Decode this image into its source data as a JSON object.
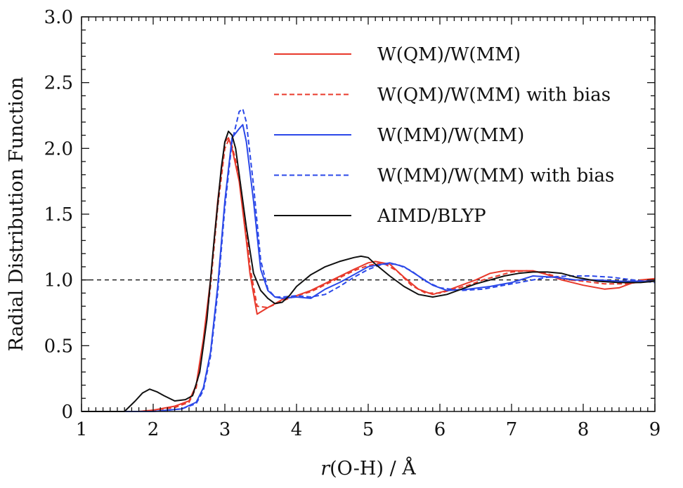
{
  "chart_data": {
    "type": "line",
    "xlabel_italic": "r",
    "xlabel_rest": "(O-H) / Å",
    "ylabel": "Radial Distribution Function",
    "xlim": [
      1,
      9
    ],
    "ylim": [
      0,
      3.0
    ],
    "x_ticks": [
      {
        "value": 1,
        "label": "1"
      },
      {
        "value": 2,
        "label": "2"
      },
      {
        "value": 3,
        "label": "3"
      },
      {
        "value": 4,
        "label": "4"
      },
      {
        "value": 5,
        "label": "5"
      },
      {
        "value": 6,
        "label": "6"
      },
      {
        "value": 7,
        "label": "7"
      },
      {
        "value": 8,
        "label": "8"
      },
      {
        "value": 9,
        "label": "9"
      }
    ],
    "y_ticks": [
      {
        "value": 0,
        "label": "0"
      },
      {
        "value": 0.5,
        "label": "0.5"
      },
      {
        "value": 1.0,
        "label": "1.0"
      },
      {
        "value": 1.5,
        "label": "1.5"
      },
      {
        "value": 2.0,
        "label": "2.0"
      },
      {
        "value": 2.5,
        "label": "2.5"
      },
      {
        "value": 3.0,
        "label": "3.0"
      }
    ],
    "reference_line": {
      "y": 1.0,
      "color": "#222222",
      "dash": "dashed"
    },
    "legend_position": "top-right",
    "series": [
      {
        "name": "W(QM)/W(MM)",
        "color": "#e8392b",
        "dash": "solid",
        "x": [
          1.0,
          1.8,
          2.0,
          2.3,
          2.5,
          2.6,
          2.7,
          2.8,
          2.9,
          3.0,
          3.05,
          3.1,
          3.2,
          3.3,
          3.35,
          3.45,
          3.6,
          3.8,
          4.0,
          4.2,
          4.5,
          4.8,
          5.0,
          5.1,
          5.3,
          5.5,
          5.7,
          5.9,
          6.1,
          6.3,
          6.5,
          6.7,
          6.9,
          7.1,
          7.3,
          7.5,
          7.7,
          8.0,
          8.3,
          8.5,
          8.8,
          9.0
        ],
        "y": [
          0.0,
          0.0,
          0.01,
          0.04,
          0.08,
          0.2,
          0.55,
          1.0,
          1.6,
          2.05,
          2.08,
          2.0,
          1.75,
          1.3,
          1.05,
          0.74,
          0.79,
          0.85,
          0.88,
          0.92,
          1.0,
          1.08,
          1.13,
          1.14,
          1.12,
          1.02,
          0.93,
          0.89,
          0.92,
          0.96,
          1.0,
          1.05,
          1.07,
          1.07,
          1.07,
          1.04,
          1.0,
          0.96,
          0.93,
          0.94,
          1.0,
          1.01
        ]
      },
      {
        "name": "W(QM)/W(MM) with bias",
        "color": "#e8392b",
        "dash": "dashed",
        "x": [
          1.0,
          1.8,
          2.0,
          2.3,
          2.5,
          2.6,
          2.7,
          2.8,
          2.9,
          3.0,
          3.05,
          3.1,
          3.2,
          3.3,
          3.35,
          3.45,
          3.6,
          3.8,
          4.0,
          4.2,
          4.5,
          4.8,
          5.0,
          5.2,
          5.4,
          5.6,
          5.8,
          6.0,
          6.2,
          6.4,
          6.6,
          6.8,
          7.0,
          7.2,
          7.4,
          7.6,
          7.8,
          8.0,
          8.3,
          8.6,
          9.0
        ],
        "y": [
          0.0,
          0.0,
          0.01,
          0.03,
          0.07,
          0.18,
          0.5,
          0.95,
          1.55,
          2.0,
          2.06,
          2.02,
          1.8,
          1.38,
          1.1,
          0.8,
          0.79,
          0.84,
          0.88,
          0.91,
          0.99,
          1.07,
          1.11,
          1.13,
          1.07,
          0.96,
          0.9,
          0.9,
          0.93,
          0.96,
          1.0,
          1.03,
          1.06,
          1.07,
          1.06,
          1.03,
          1.0,
          0.99,
          0.97,
          0.97,
          1.0
        ]
      },
      {
        "name": "W(MM)/W(MM)",
        "color": "#2b48e8",
        "dash": "solid",
        "x": [
          1.0,
          2.0,
          2.4,
          2.6,
          2.7,
          2.8,
          2.9,
          3.0,
          3.1,
          3.2,
          3.25,
          3.3,
          3.4,
          3.5,
          3.6,
          3.7,
          3.8,
          4.0,
          4.2,
          4.4,
          4.6,
          4.8,
          5.0,
          5.2,
          5.3,
          5.5,
          5.7,
          5.9,
          6.1,
          6.4,
          6.7,
          7.0,
          7.3,
          7.6,
          7.9,
          8.2,
          8.5,
          8.8,
          9.0
        ],
        "y": [
          0.0,
          0.0,
          0.02,
          0.07,
          0.18,
          0.45,
          0.95,
          1.6,
          2.08,
          2.15,
          2.18,
          2.05,
          1.6,
          1.08,
          0.92,
          0.87,
          0.86,
          0.87,
          0.86,
          0.93,
          0.98,
          1.04,
          1.1,
          1.12,
          1.13,
          1.1,
          1.03,
          0.96,
          0.92,
          0.93,
          0.95,
          0.98,
          1.03,
          1.02,
          1.0,
          1.0,
          0.99,
          0.99,
          0.99
        ]
      },
      {
        "name": "W(MM)/W(MM) with bias",
        "color": "#2b48e8",
        "dash": "dashed",
        "x": [
          1.0,
          2.0,
          2.4,
          2.6,
          2.7,
          2.8,
          2.9,
          3.0,
          3.1,
          3.2,
          3.25,
          3.3,
          3.4,
          3.5,
          3.6,
          3.7,
          3.8,
          4.0,
          4.2,
          4.4,
          4.6,
          4.8,
          5.0,
          5.2,
          5.4,
          5.6,
          5.8,
          6.0,
          6.3,
          6.6,
          6.9,
          7.2,
          7.5,
          7.8,
          8.1,
          8.4,
          8.7,
          9.0
        ],
        "y": [
          0.0,
          0.0,
          0.02,
          0.06,
          0.16,
          0.42,
          0.9,
          1.55,
          2.05,
          2.28,
          2.3,
          2.2,
          1.72,
          1.15,
          0.93,
          0.87,
          0.87,
          0.88,
          0.87,
          0.89,
          0.95,
          1.02,
          1.08,
          1.12,
          1.12,
          1.07,
          0.99,
          0.94,
          0.92,
          0.93,
          0.96,
          0.99,
          1.02,
          1.03,
          1.03,
          1.02,
          1.0,
          0.98
        ]
      },
      {
        "name": "AIMD/BLYP",
        "color": "#111111",
        "dash": "solid",
        "x": [
          1.0,
          1.6,
          1.75,
          1.85,
          1.95,
          2.05,
          2.15,
          2.3,
          2.45,
          2.55,
          2.65,
          2.75,
          2.85,
          2.95,
          3.0,
          3.05,
          3.1,
          3.15,
          3.2,
          3.25,
          3.3,
          3.4,
          3.5,
          3.6,
          3.7,
          3.8,
          3.9,
          4.0,
          4.2,
          4.4,
          4.6,
          4.8,
          4.9,
          5.0,
          5.1,
          5.3,
          5.5,
          5.7,
          5.9,
          6.1,
          6.3,
          6.5,
          6.7,
          6.9,
          7.1,
          7.3,
          7.5,
          7.7,
          7.9,
          8.2,
          8.5,
          8.8,
          9.0
        ],
        "y": [
          0.0,
          0.0,
          0.08,
          0.14,
          0.17,
          0.15,
          0.12,
          0.08,
          0.09,
          0.12,
          0.3,
          0.7,
          1.3,
          1.85,
          2.05,
          2.13,
          2.1,
          2.0,
          1.8,
          1.6,
          1.4,
          1.05,
          0.92,
          0.86,
          0.82,
          0.83,
          0.88,
          0.95,
          1.04,
          1.1,
          1.14,
          1.17,
          1.18,
          1.17,
          1.12,
          1.03,
          0.95,
          0.89,
          0.87,
          0.89,
          0.93,
          0.97,
          1.0,
          1.03,
          1.05,
          1.06,
          1.06,
          1.05,
          1.02,
          0.99,
          0.98,
          0.98,
          0.99
        ]
      }
    ]
  }
}
